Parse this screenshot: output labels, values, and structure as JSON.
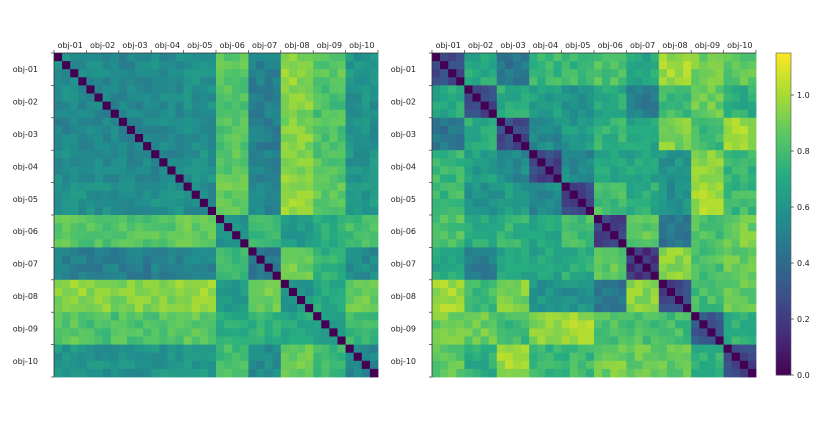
{
  "figure": {
    "title": ""
  },
  "chart_data": [
    {
      "type": "heatmap",
      "title": "",
      "labels": [
        "obj-01",
        "obj-02",
        "obj-03",
        "obj-04",
        "obj-05",
        "obj-06",
        "obj-07",
        "obj-08",
        "obj-09",
        "obj-10"
      ],
      "n_cells": 40,
      "cells_per_label": 4,
      "diagonal_value": 0.0,
      "block_values": [
        [
          0.55,
          0.55,
          0.53,
          0.56,
          0.58,
          0.85,
          0.5,
          0.95,
          0.85,
          0.6
        ],
        [
          0.55,
          0.52,
          0.54,
          0.55,
          0.58,
          0.84,
          0.5,
          0.93,
          0.82,
          0.58
        ],
        [
          0.53,
          0.54,
          0.52,
          0.55,
          0.57,
          0.84,
          0.49,
          0.94,
          0.83,
          0.58
        ],
        [
          0.56,
          0.55,
          0.55,
          0.53,
          0.58,
          0.85,
          0.51,
          0.94,
          0.84,
          0.6
        ],
        [
          0.58,
          0.58,
          0.57,
          0.58,
          0.55,
          0.88,
          0.53,
          0.96,
          0.86,
          0.62
        ],
        [
          0.85,
          0.84,
          0.84,
          0.85,
          0.88,
          0.6,
          0.78,
          0.62,
          0.72,
          0.8
        ],
        [
          0.5,
          0.5,
          0.49,
          0.51,
          0.53,
          0.78,
          0.45,
          0.9,
          0.75,
          0.55
        ],
        [
          0.95,
          0.93,
          0.94,
          0.94,
          0.96,
          0.62,
          0.9,
          0.6,
          0.7,
          0.88
        ],
        [
          0.85,
          0.82,
          0.83,
          0.84,
          0.86,
          0.72,
          0.75,
          0.7,
          0.62,
          0.78
        ],
        [
          0.6,
          0.58,
          0.58,
          0.6,
          0.62,
          0.8,
          0.55,
          0.88,
          0.78,
          0.55
        ]
      ],
      "within_label_variation": 0.06
    },
    {
      "type": "heatmap",
      "title": "",
      "labels": [
        "obj-01",
        "obj-02",
        "obj-03",
        "obj-04",
        "obj-05",
        "obj-06",
        "obj-07",
        "obj-08",
        "obj-09",
        "obj-10"
      ],
      "n_cells": 40,
      "cells_per_label": 4,
      "diagonal_value": 0.0,
      "block_values": [
        [
          0.25,
          0.7,
          0.45,
          0.78,
          0.78,
          0.82,
          0.7,
          0.98,
          0.9,
          0.85
        ],
        [
          0.7,
          0.25,
          0.72,
          0.65,
          0.6,
          0.72,
          0.5,
          0.78,
          0.88,
          0.72
        ],
        [
          0.45,
          0.72,
          0.25,
          0.55,
          0.62,
          0.75,
          0.7,
          0.92,
          0.8,
          0.98
        ],
        [
          0.78,
          0.65,
          0.55,
          0.25,
          0.55,
          0.7,
          0.68,
          0.6,
          0.95,
          0.75
        ],
        [
          0.78,
          0.6,
          0.62,
          0.55,
          0.25,
          0.8,
          0.72,
          0.58,
          0.98,
          0.78
        ],
        [
          0.82,
          0.72,
          0.75,
          0.7,
          0.8,
          0.25,
          0.85,
          0.45,
          0.82,
          0.9
        ],
        [
          0.7,
          0.5,
          0.7,
          0.68,
          0.72,
          0.85,
          0.18,
          0.95,
          0.82,
          0.88
        ],
        [
          0.98,
          0.78,
          0.92,
          0.6,
          0.58,
          0.45,
          0.95,
          0.25,
          0.8,
          0.88
        ],
        [
          0.9,
          0.88,
          0.8,
          0.95,
          0.98,
          0.82,
          0.82,
          0.8,
          0.3,
          0.75
        ],
        [
          0.85,
          0.72,
          0.98,
          0.75,
          0.78,
          0.9,
          0.88,
          0.88,
          0.75,
          0.25
        ]
      ],
      "within_label_variation": 0.07
    }
  ],
  "colorbar": {
    "colormap": "viridis",
    "min": 0.0,
    "max": 1.15,
    "ticks": [
      0.0,
      0.2,
      0.4,
      0.6,
      0.8,
      1.0
    ],
    "tick_labels": [
      "0.0",
      "0.2",
      "0.4",
      "0.6",
      "0.8",
      "1.0"
    ]
  }
}
